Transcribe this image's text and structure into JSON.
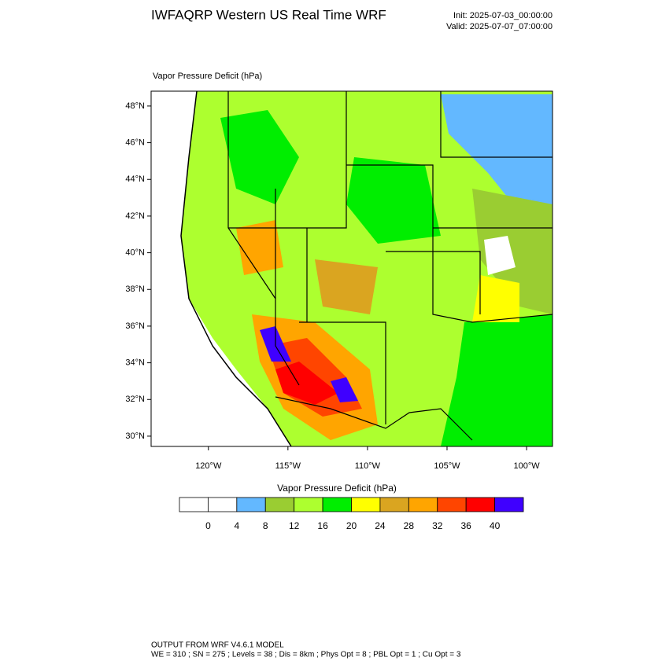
{
  "header": {
    "title": "IWFAQRP Western US Real Time WRF",
    "init": "Init: 2025-07-03_00:00:00",
    "valid": "Valid: 2025-07-07_07:00:00"
  },
  "map": {
    "field_label": "Vapor Pressure Deficit   (hPa)",
    "lat_range": [
      29.44,
      48.81
    ],
    "lat_ticks": [
      {
        "value": 48,
        "label": "48°N"
      },
      {
        "value": 46,
        "label": "46°N"
      },
      {
        "value": 44,
        "label": "44°N"
      },
      {
        "value": 42,
        "label": "42°N"
      },
      {
        "value": 40,
        "label": "40°N"
      },
      {
        "value": 38,
        "label": "38°N"
      },
      {
        "value": 36,
        "label": "36°N"
      },
      {
        "value": 34,
        "label": "34°N"
      },
      {
        "value": 32,
        "label": "32°N"
      },
      {
        "value": 30,
        "label": "30°N"
      }
    ],
    "lon_range": [
      -123.6,
      -98.37
    ],
    "lon_ticks": [
      {
        "value": -120,
        "label": "120°W"
      },
      {
        "value": -115,
        "label": "115°W"
      },
      {
        "value": -110,
        "label": "110°W"
      },
      {
        "value": -105,
        "label": "105°W"
      },
      {
        "value": -100,
        "label": "100°W"
      }
    ]
  },
  "colorbar": {
    "title": "Vapor Pressure Deficit  (hPa)",
    "levels": [
      0,
      4,
      8,
      12,
      16,
      20,
      24,
      28,
      32,
      36,
      40
    ],
    "colors": [
      "#ffffff",
      "#ffffff",
      "#63b8ff",
      "#9acd32",
      "#adff2f",
      "#00ee00",
      "#ffff00",
      "#daa520",
      "#ffa500",
      "#ff4500",
      "#ff0000",
      "#3f00ff"
    ]
  },
  "footer": {
    "line1": "OUTPUT FROM WRF V4.6.1 MODEL",
    "line2": "WE = 310 ; SN = 275 ; Levels = 38 ; Dis = 8km ; Phys Opt = 8 ; PBL Opt = 1 ; Cu Opt = 3"
  }
}
